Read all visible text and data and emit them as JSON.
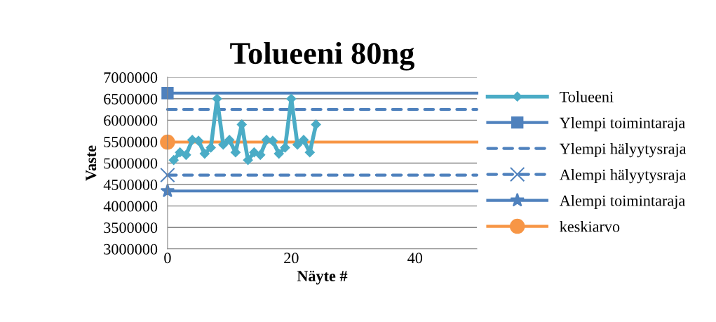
{
  "chart_data": {
    "type": "line",
    "title": "Tolueeni 80ng",
    "xlabel": "Näyte #",
    "ylabel": "Vaste",
    "xlim": [
      0,
      50
    ],
    "xticks": [
      0,
      20,
      40
    ],
    "ylim": [
      3000000,
      7000000
    ],
    "yticks": [
      3000000,
      3500000,
      4000000,
      4500000,
      5000000,
      5500000,
      6000000,
      6500000,
      7000000
    ],
    "grid": "y",
    "legend": "right",
    "series": [
      {
        "name": "Tolueeni",
        "color": "#4bacc6",
        "marker": "diamond",
        "line_style": "solid",
        "x": [
          1,
          2,
          3,
          4,
          5,
          6,
          7,
          8,
          9,
          10,
          11,
          12,
          13,
          14,
          15,
          16,
          17,
          18,
          19,
          20,
          21,
          22,
          23,
          24
        ],
        "values": [
          5070000,
          5250000,
          5190000,
          5540000,
          5520000,
          5220000,
          5360000,
          6500000,
          5430000,
          5540000,
          5250000,
          5900000,
          5070000,
          5250000,
          5190000,
          5540000,
          5520000,
          5220000,
          5360000,
          6500000,
          5430000,
          5540000,
          5250000,
          5900000
        ]
      },
      {
        "name": "Ylempi toimintaraja",
        "color": "#4f81bd",
        "marker": "square",
        "line_style": "solid",
        "x": [
          0,
          50
        ],
        "values": [
          6630000,
          6630000
        ]
      },
      {
        "name": "Ylempi hälyytysraja",
        "color": "#4f81bd",
        "marker": "none",
        "line_style": "dashed",
        "x": [
          0,
          50
        ],
        "values": [
          6250000,
          6250000
        ]
      },
      {
        "name": "Alempi hälyytysraja",
        "color": "#4f81bd",
        "marker": "cross",
        "line_style": "dashed",
        "x": [
          0,
          50
        ],
        "values": [
          4720000,
          4720000
        ]
      },
      {
        "name": "Alempi toimintaraja",
        "color": "#4f81bd",
        "marker": "star",
        "line_style": "solid",
        "x": [
          0,
          50
        ],
        "values": [
          4350000,
          4350000
        ]
      },
      {
        "name": "keskiarvo",
        "color": "#f79646",
        "marker": "circle",
        "line_style": "solid",
        "x": [
          0,
          50
        ],
        "values": [
          5490000,
          5490000
        ]
      }
    ]
  }
}
